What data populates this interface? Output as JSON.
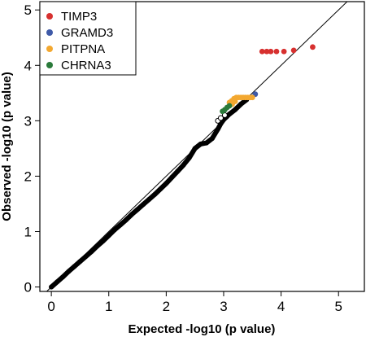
{
  "chart_data": {
    "type": "scatter",
    "title": "",
    "xlabel": "Expected -log10 (p value)",
    "ylabel": "Observed -log10 (p value)",
    "xlim": [
      -0.2,
      5.45
    ],
    "ylim": [
      -0.08,
      5.15
    ],
    "x_ticks": [
      "0",
      "1",
      "2",
      "3",
      "4",
      "5"
    ],
    "y_ticks": [
      "0",
      "1",
      "2",
      "3",
      "4",
      "5"
    ],
    "grid": false,
    "legend_position": "top-left",
    "reference_line": "y = x",
    "background_series": {
      "name": "",
      "color": "#000000",
      "x": [
        0,
        0.1,
        0.2,
        0.3,
        0.4,
        0.5,
        0.6,
        0.7,
        0.8,
        0.9,
        1.0,
        1.1,
        1.2,
        1.3,
        1.4,
        1.5,
        1.6,
        1.7,
        1.8,
        1.9,
        2.0,
        2.1,
        2.2,
        2.3,
        2.4,
        2.5,
        2.6,
        2.7,
        2.8,
        2.9,
        2.95,
        3.0,
        3.05,
        3.1,
        3.2,
        3.3,
        3.4
      ],
      "y": [
        0,
        0.09,
        0.18,
        0.28,
        0.37,
        0.46,
        0.55,
        0.64,
        0.74,
        0.83,
        0.93,
        1.03,
        1.12,
        1.21,
        1.31,
        1.4,
        1.49,
        1.58,
        1.67,
        1.77,
        1.87,
        1.98,
        2.09,
        2.2,
        2.33,
        2.5,
        2.58,
        2.6,
        2.68,
        2.85,
        2.95,
        3.02,
        3.07,
        3.12,
        3.2,
        3.3,
        3.38
      ]
    },
    "series": [
      {
        "name": "TIMP3",
        "color": "#d7302f",
        "x": [
          3.67,
          3.75,
          3.82,
          3.92,
          4.05,
          4.22,
          4.55
        ],
        "y": [
          4.25,
          4.25,
          4.25,
          4.25,
          4.25,
          4.27,
          4.33
        ]
      },
      {
        "name": "GRAMD3",
        "color": "#3f5aa8",
        "x": [
          3.55
        ],
        "y": [
          3.48
        ]
      },
      {
        "name": "PITPNA",
        "color": "#f3a830",
        "x": [
          3.1,
          3.14,
          3.18,
          3.22,
          3.26,
          3.3,
          3.34,
          3.38,
          3.42,
          3.46,
          3.5,
          3.15,
          3.2
        ],
        "y": [
          3.33,
          3.36,
          3.4,
          3.42,
          3.42,
          3.42,
          3.42,
          3.42,
          3.42,
          3.42,
          3.42,
          3.3,
          3.35
        ]
      },
      {
        "name": "CHRNA3",
        "color": "#2a7a3a",
        "x": [
          2.98,
          3.02,
          3.06,
          3.1
        ],
        "y": [
          3.17,
          3.2,
          3.24,
          3.27
        ]
      }
    ]
  }
}
